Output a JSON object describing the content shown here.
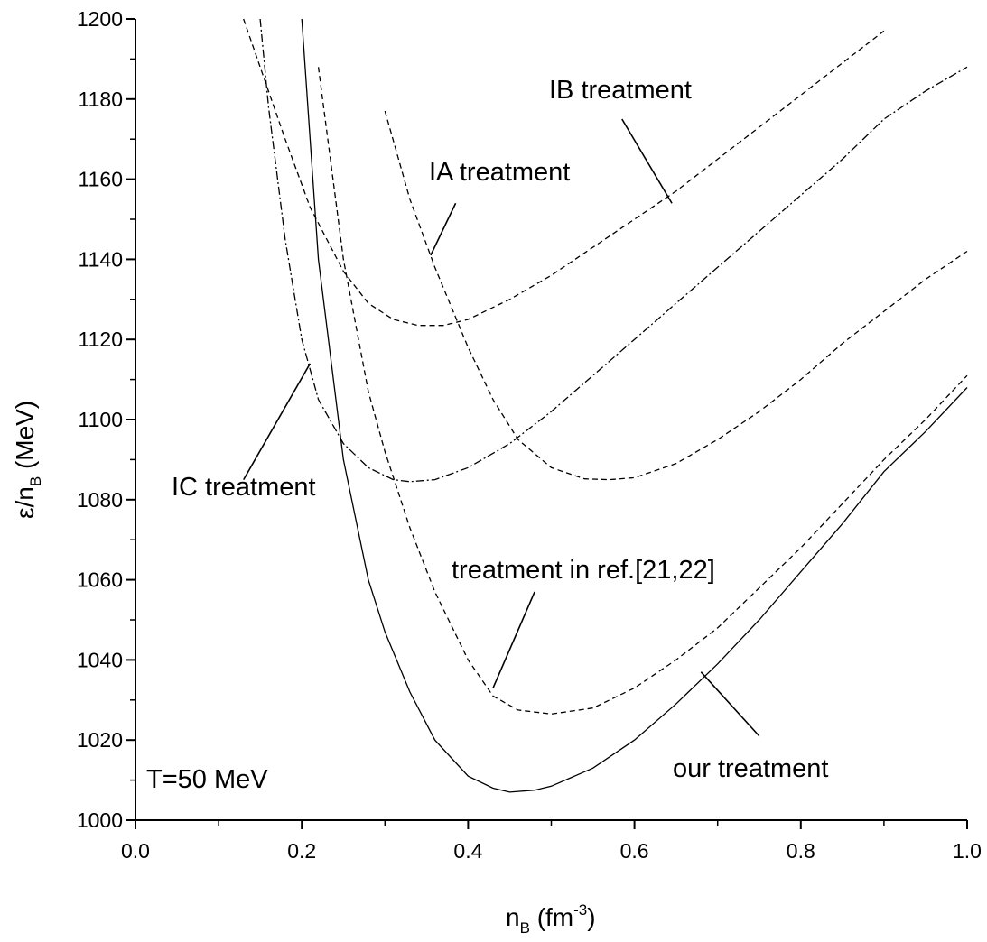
{
  "chart_data": {
    "type": "line",
    "xlabel": {
      "main": "n",
      "sub": "B",
      "unit_open": " (fm",
      "sup": "-3",
      "unit_close": ")"
    },
    "ylabel": {
      "main": "ε/n",
      "sub": "B",
      "unit": " (MeV)"
    },
    "xlim": [
      0.0,
      1.0
    ],
    "ylim": [
      1000,
      1200
    ],
    "xticks": [
      "0.0",
      "0.2",
      "0.4",
      "0.6",
      "0.8",
      "1.0"
    ],
    "yticks": [
      "1000",
      "1020",
      "1040",
      "1060",
      "1080",
      "1100",
      "1120",
      "1140",
      "1160",
      "1180",
      "1200"
    ],
    "grid": false,
    "series": [
      {
        "name": "our treatment",
        "style": "solid",
        "x": [
          0.2,
          0.22,
          0.25,
          0.28,
          0.3,
          0.33,
          0.36,
          0.4,
          0.43,
          0.45,
          0.48,
          0.5,
          0.55,
          0.6,
          0.65,
          0.7,
          0.75,
          0.8,
          0.85,
          0.9,
          0.95,
          1.0
        ],
        "y": [
          1200,
          1140,
          1090,
          1060,
          1047,
          1032,
          1020,
          1011,
          1008,
          1007,
          1007.5,
          1008.5,
          1013,
          1020,
          1029,
          1039,
          1050,
          1062,
          1074,
          1087,
          1097,
          1108
        ]
      },
      {
        "name": "treatment in ref.[21,22]",
        "style": "dashed",
        "x": [
          0.22,
          0.25,
          0.28,
          0.3,
          0.33,
          0.36,
          0.4,
          0.43,
          0.46,
          0.5,
          0.55,
          0.6,
          0.65,
          0.7,
          0.75,
          0.8,
          0.85,
          0.9,
          0.95,
          1.0
        ],
        "y": [
          1188,
          1140,
          1107,
          1092,
          1073,
          1057,
          1040,
          1031,
          1027.5,
          1026.5,
          1028,
          1033,
          1040,
          1048,
          1058,
          1068,
          1079,
          1090,
          1100,
          1111
        ]
      },
      {
        "name": "IA treatment",
        "style": "dashed",
        "x": [
          0.3,
          0.33,
          0.36,
          0.4,
          0.43,
          0.46,
          0.5,
          0.54,
          0.57,
          0.6,
          0.65,
          0.7,
          0.75,
          0.8,
          0.85,
          0.9,
          0.95,
          1.0
        ],
        "y": [
          1177,
          1155,
          1138,
          1118,
          1105,
          1095,
          1088,
          1085.2,
          1085,
          1085.5,
          1089,
          1095,
          1102,
          1110,
          1119,
          1127,
          1135,
          1142
        ]
      },
      {
        "name": "IB treatment",
        "style": "dashed",
        "x": [
          0.13,
          0.15,
          0.18,
          0.21,
          0.25,
          0.28,
          0.31,
          0.34,
          0.37,
          0.4,
          0.45,
          0.5,
          0.55,
          0.6,
          0.65,
          0.7,
          0.75,
          0.8,
          0.85,
          0.9
        ],
        "y": [
          1200,
          1188,
          1170,
          1153,
          1137,
          1129,
          1125,
          1123.5,
          1123.5,
          1125,
          1130,
          1136,
          1143,
          1150,
          1157,
          1165,
          1173,
          1181,
          1189,
          1197
        ]
      },
      {
        "name": "IC treatment",
        "style": "dashdot",
        "x": [
          0.15,
          0.16,
          0.18,
          0.2,
          0.22,
          0.25,
          0.28,
          0.31,
          0.33,
          0.36,
          0.4,
          0.45,
          0.5,
          0.55,
          0.6,
          0.65,
          0.7,
          0.75,
          0.8,
          0.85,
          0.9,
          0.95,
          1.0
        ],
        "y": [
          1200,
          1178,
          1145,
          1120,
          1105,
          1094,
          1088,
          1085,
          1084.5,
          1085,
          1088,
          1094,
          1102,
          1111,
          1120,
          1129,
          1138,
          1147,
          1156,
          1165,
          1175,
          1182,
          1188
        ]
      }
    ],
    "annotations": [
      {
        "text": "IB treatment",
        "line_from": [
          0.645,
          1154
        ],
        "line_to": [
          0.585,
          1175
        ]
      },
      {
        "text": "IA treatment",
        "line_from": [
          0.355,
          1141
        ],
        "line_to": [
          0.385,
          1154
        ]
      },
      {
        "text": "IC treatment",
        "line_from": [
          0.21,
          1114
        ],
        "line_to": [
          0.13,
          1085
        ]
      },
      {
        "text": "treatment in ref.[21,22]",
        "line_from": [
          0.43,
          1033
        ],
        "line_to": [
          0.48,
          1057
        ]
      },
      {
        "text": "our treatment",
        "line_from": [
          0.68,
          1037
        ],
        "line_to": [
          0.75,
          1021
        ]
      }
    ],
    "condition_label": "T=50 MeV"
  }
}
